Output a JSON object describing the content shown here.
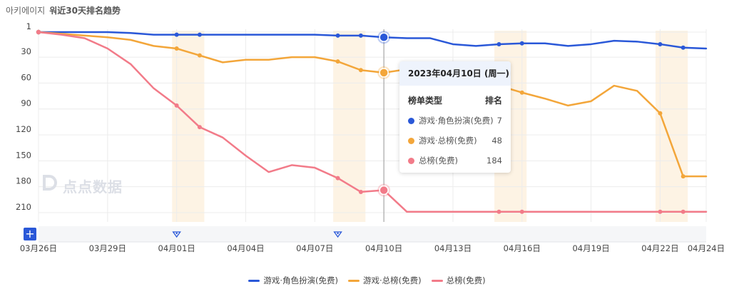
{
  "header": {
    "app_name": "아키에이지",
    "title_rest": "워近30天排名趋势"
  },
  "tooltip": {
    "date": "2023年04月10日 (周一)",
    "col_type": "榜单类型",
    "col_rank": "排名",
    "rows": [
      {
        "name": "游戏·角色扮演(免费)",
        "value": "7",
        "color": "#2a58d8"
      },
      {
        "name": "游戏·总榜(免费)",
        "value": "48",
        "color": "#f3a63a"
      },
      {
        "name": "总榜(免费)",
        "value": "184",
        "color": "#f27b89"
      }
    ]
  },
  "watermark": "点点数据",
  "zoom_button": "+",
  "chart_data": {
    "type": "line",
    "x": [
      "03月26日",
      "03月27日",
      "03月28日",
      "03月29日",
      "03月30日",
      "03月31日",
      "04月01日",
      "04月02日",
      "04月03日",
      "04月04日",
      "04月05日",
      "04月06日",
      "04月07日",
      "04月08日",
      "04月09日",
      "04月10日",
      "04月11日",
      "04月12日",
      "04月13日",
      "04月14日",
      "04月15日",
      "04月16日",
      "04月17日",
      "04月18日",
      "04月19日",
      "04月20日",
      "04月21日",
      "04月22日",
      "04月23日",
      "04月24日"
    ],
    "x_ticks": [
      "03月26日",
      "03月29日",
      "04月01日",
      "04月04日",
      "04月07日",
      "04月10日",
      "04月13日",
      "04月16日",
      "04月19日",
      "04月22日",
      "04月24日"
    ],
    "y_ticks": [
      1,
      30,
      60,
      90,
      120,
      150,
      180,
      210
    ],
    "ylim": [
      1,
      210
    ],
    "y_inverted": true,
    "grid": true,
    "legend_position": "bottom",
    "highlight_bands": [
      [
        "04月01日",
        "04月02日"
      ],
      [
        "04月08日",
        "04月09日"
      ],
      [
        "04月15日",
        "04月16日"
      ],
      [
        "04月22日",
        "04月23日"
      ]
    ],
    "event_markers": [
      "04月01日",
      "04月08日"
    ],
    "hover_x": "04月10日",
    "series": [
      {
        "name": "游戏·角色扮演(免费)",
        "color": "#2a58d8",
        "values": [
          1,
          1,
          1,
          1,
          2,
          4,
          4,
          4,
          4,
          4,
          4,
          4,
          4,
          5,
          5,
          7,
          8,
          8,
          15,
          17,
          15,
          14,
          14,
          17,
          15,
          11,
          12,
          15,
          19,
          20
        ],
        "markers": [
          "04月01日",
          "04月02日",
          "04月08日",
          "04月09日",
          "04月15日",
          "04月16日",
          "04月22日",
          "04月23日"
        ]
      },
      {
        "name": "游戏·总榜(免费)",
        "color": "#f3a63a",
        "values": [
          1,
          3,
          5,
          7,
          10,
          17,
          20,
          28,
          36,
          33,
          33,
          30,
          30,
          35,
          45,
          48,
          44,
          55,
          60,
          63,
          63,
          71,
          78,
          86,
          81,
          63,
          69,
          95,
          168,
          168
        ],
        "markers": [
          "04月01日",
          "04月02日",
          "04月08日",
          "04月09日",
          "04月15日",
          "04月16日",
          "04月22日",
          "04月23日"
        ]
      },
      {
        "name": "总榜(免费)",
        "color": "#f27b89",
        "values": [
          1,
          4,
          8,
          20,
          38,
          66,
          86,
          111,
          123,
          144,
          163,
          155,
          158,
          170,
          186,
          184,
          209,
          209,
          209,
          209,
          209,
          209,
          209,
          209,
          209,
          209,
          209,
          209,
          209,
          209
        ],
        "markers": [
          "04月01日",
          "04月02日",
          "04月08日",
          "04月09日",
          "04月15日",
          "04月16日",
          "04月22日",
          "04月23日"
        ]
      }
    ]
  }
}
